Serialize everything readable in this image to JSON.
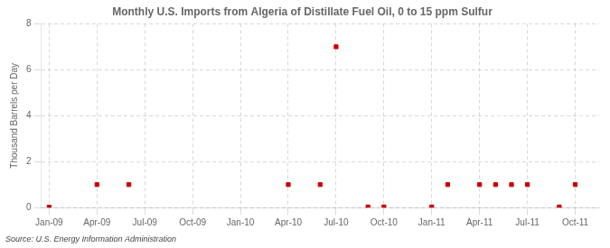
{
  "chart_data": {
    "type": "scatter",
    "title": "Monthly U.S. Imports from Algeria of Distillate Fuel Oil, 0 to 15 ppm Sulfur",
    "y_label": "Thousand Barrels per Day",
    "source": "Source: U.S. Energy Information Administration",
    "categories": [
      "Jan-09",
      null,
      null,
      "Apr-09",
      null,
      null,
      "Jul-09",
      null,
      null,
      "Oct-09",
      null,
      null,
      "Jan-10",
      null,
      null,
      "Apr-10",
      null,
      null,
      "Jul-10",
      null,
      null,
      "Oct-10",
      null,
      null,
      "Jan-11",
      null,
      null,
      "Apr-11",
      null,
      null,
      "Jul-11",
      null,
      null,
      "Oct-11",
      null
    ],
    "values": [
      0.02,
      null,
      null,
      1.0,
      null,
      1.0,
      null,
      null,
      null,
      null,
      null,
      null,
      null,
      null,
      null,
      1.0,
      null,
      1.0,
      7.0,
      null,
      0.03,
      0.03,
      null,
      null,
      0.03,
      1.0,
      null,
      1.0,
      1.0,
      1.0,
      1.0,
      null,
      0.03,
      1.0,
      null
    ],
    "color": "#cc0000",
    "marker": "square",
    "ylim": [
      0,
      8
    ],
    "yticks": [
      0,
      2,
      4,
      6,
      8
    ],
    "grid": true
  }
}
